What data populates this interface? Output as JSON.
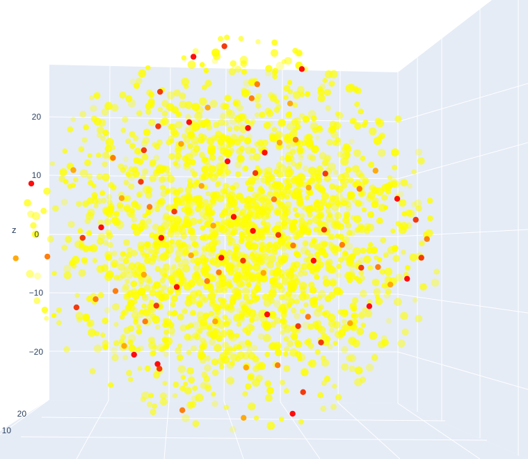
{
  "chart_data": {
    "type": "scatter",
    "dimensions": 3,
    "title": "",
    "axis_titles": {
      "z": "z"
    },
    "z_ticks": [
      {
        "value": 20,
        "label": "20"
      },
      {
        "value": 10,
        "label": "10"
      },
      {
        "value": 0,
        "label": "0"
      },
      {
        "value": -10,
        "label": "−10"
      },
      {
        "value": -20,
        "label": "−20"
      }
    ],
    "bottom_left_ticks": [
      {
        "value": 20,
        "label": "20"
      },
      {
        "value": 10,
        "label": "10"
      }
    ],
    "grid": true,
    "colors": {
      "scene_background": "#e5ecf6",
      "gridline": "#ffffff",
      "dense_points": "#ffff00",
      "highlight_points": [
        "#ff0000",
        "#f23000",
        "#ff7800",
        "#ffa500"
      ]
    },
    "approximate_range": {
      "z": [
        -30,
        30
      ]
    },
    "highlight_points": [
      {
        "a": -6.5,
        "z": 30.4
      },
      {
        "a": -1.5,
        "z": 32.2
      },
      {
        "a": 3.8,
        "z": 25.7
      },
      {
        "a": 9.1,
        "z": 22.4
      },
      {
        "a": 11.0,
        "z": 28.3
      },
      {
        "a": -11.9,
        "z": 24.4
      },
      {
        "a": 2.9,
        "z": 23.3
      },
      {
        "a": -4.2,
        "z": 21.7
      },
      {
        "a": -7.2,
        "z": 19.2
      },
      {
        "a": -12.2,
        "z": 18.5
      },
      {
        "a": 10.0,
        "z": 16.2
      },
      {
        "a": 7.4,
        "z": 15.7
      },
      {
        "a": 2.3,
        "z": 18.2
      },
      {
        "a": -14.5,
        "z": 14.4
      },
      {
        "a": -19.5,
        "z": 13.1
      },
      {
        "a": -25.9,
        "z": 11.0
      },
      {
        "a": -32.7,
        "z": 8.7
      },
      {
        "a": 14.8,
        "z": 10.4
      },
      {
        "a": 20.3,
        "z": 7.8
      },
      {
        "a": 22.9,
        "z": 10.9
      },
      {
        "a": 26.4,
        "z": 6.1
      },
      {
        "a": 29.4,
        "z": 2.5
      },
      {
        "a": 31.2,
        "z": -0.8
      },
      {
        "a": -5.2,
        "z": 8.3
      },
      {
        "a": -1.0,
        "z": 12.5
      },
      {
        "a": 3.5,
        "z": 10.5
      },
      {
        "a": 6.5,
        "z": 6.0
      },
      {
        "a": 12.1,
        "z": 8.0
      },
      {
        "a": 0.0,
        "z": 3.0
      },
      {
        "a": -9.6,
        "z": 3.9
      },
      {
        "a": -13.6,
        "z": 4.7
      },
      {
        "a": -18.1,
        "z": 6.2
      },
      {
        "a": -21.4,
        "z": 1.2
      },
      {
        "a": -24.4,
        "z": -0.6
      },
      {
        "a": -30.1,
        "z": -3.8
      },
      {
        "a": -35.2,
        "z": -4.1
      },
      {
        "a": 3.1,
        "z": 0.6
      },
      {
        "a": 7.2,
        "z": -0.1
      },
      {
        "a": 9.6,
        "z": -1.9
      },
      {
        "a": -3.3,
        "z": 1.5
      },
      {
        "a": -11.7,
        "z": -0.6
      },
      {
        "a": 1.5,
        "z": -4.5
      },
      {
        "a": -2.4,
        "z": -6.5
      },
      {
        "a": 4.8,
        "z": -6.6
      },
      {
        "a": 12.9,
        "z": -4.5
      },
      {
        "a": 20.6,
        "z": -5.7
      },
      {
        "a": 23.3,
        "z": -5.6
      },
      {
        "a": 25.3,
        "z": -8.6
      },
      {
        "a": 28.0,
        "z": -7.6
      },
      {
        "a": 30.3,
        "z": -4.0
      },
      {
        "a": -19.1,
        "z": -9.7
      },
      {
        "a": -14.5,
        "z": -6.9
      },
      {
        "a": -9.2,
        "z": -9.0
      },
      {
        "a": -12.5,
        "z": -12.2
      },
      {
        "a": -14.3,
        "z": -14.9
      },
      {
        "a": -17.7,
        "z": -19.1
      },
      {
        "a": -16.1,
        "z": -20.6
      },
      {
        "a": -25.4,
        "z": -12.5
      },
      {
        "a": -22.3,
        "z": -11.1
      },
      {
        "a": -3.0,
        "z": -14.9
      },
      {
        "a": 5.4,
        "z": -13.7
      },
      {
        "a": 10.4,
        "z": -15.7
      },
      {
        "a": 12.0,
        "z": -14.1
      },
      {
        "a": 18.8,
        "z": -15.2
      },
      {
        "a": 21.9,
        "z": -12.3
      },
      {
        "a": 14.1,
        "z": -18.5
      },
      {
        "a": 7.1,
        "z": -22.4
      },
      {
        "a": 2.0,
        "z": -22.8
      },
      {
        "a": -12.3,
        "z": -22.2
      },
      {
        "a": -12.0,
        "z": -23.0
      },
      {
        "a": -8.3,
        "z": -30.1
      },
      {
        "a": 1.6,
        "z": -31.4
      },
      {
        "a": 9.5,
        "z": -30.7
      },
      {
        "a": 11.2,
        "z": -27.0
      },
      {
        "a": -4.3,
        "z": -8.0
      },
      {
        "a": -6.9,
        "z": -3.6
      },
      {
        "a": -2.0,
        "z": -4.0
      },
      {
        "a": 14.6,
        "z": 0.8
      },
      {
        "a": 17.5,
        "z": -1.8
      },
      {
        "a": -8.5,
        "z": 15.5
      },
      {
        "a": 5.0,
        "z": 14.0
      },
      {
        "a": -15.0,
        "z": 9.0
      }
    ]
  }
}
